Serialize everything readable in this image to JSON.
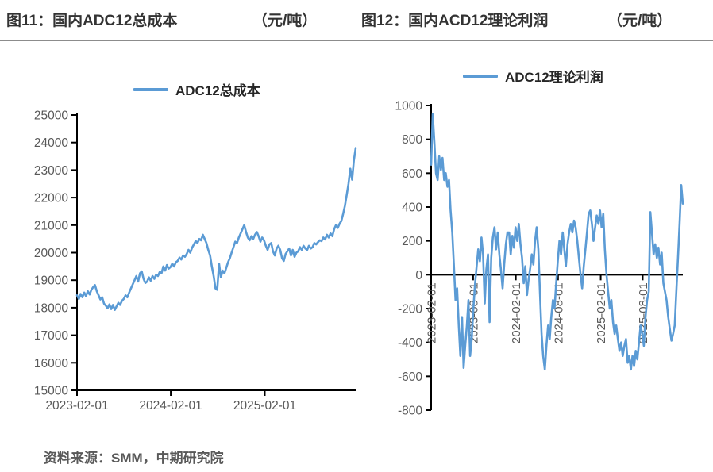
{
  "page": {
    "title_left": {
      "label": "图11：国内ADC12总成本",
      "unit": "（元/吨）"
    },
    "title_right": {
      "label": "图12：国内ACD12理论利润",
      "unit": "（元/吨）"
    },
    "footer": "资料来源：SMM，中期研究院"
  },
  "colors": {
    "line": "#5B9BD5",
    "axis": "#000000",
    "tick_label": "#595959",
    "title_text": "#333333",
    "divider": "#8C8C8C"
  },
  "chart_data": [
    {
      "type": "line",
      "name": "adc12-total-cost",
      "title": "图11：国内ADC12总成本（元/吨）",
      "legend": "ADC12总成本",
      "legend_position": "top",
      "grid": false,
      "line_color": "#5B9BD5",
      "ylim": [
        15000,
        25000
      ],
      "ytick_step": 1000,
      "yticks": [
        15000,
        16000,
        17000,
        18000,
        19000,
        20000,
        21000,
        22000,
        23000,
        24000,
        25000
      ],
      "xticks": [
        "2023-02-01",
        "2024-02-01",
        "2025-02-01"
      ],
      "xtick_rotation": 0,
      "x_axis_at_y": 15000,
      "series": [
        {
          "name": "ADC12总成本",
          "start": "2023-02-01",
          "step_days": 7,
          "values": [
            18450,
            18320,
            18500,
            18380,
            18550,
            18420,
            18600,
            18480,
            18650,
            18750,
            18820,
            18600,
            18450,
            18300,
            18380,
            18150,
            18080,
            17980,
            18120,
            17950,
            18100,
            17920,
            18050,
            18180,
            18100,
            18250,
            18320,
            18450,
            18380,
            18550,
            18700,
            18850,
            19000,
            19150,
            18950,
            19250,
            19320,
            19050,
            18900,
            18950,
            19100,
            18980,
            19150,
            19050,
            19200,
            19150,
            19300,
            19250,
            19500,
            19350,
            19550,
            19420,
            19480,
            19600,
            19500,
            19650,
            19700,
            19820,
            19750,
            19900,
            19850,
            19950,
            20100,
            20000,
            20180,
            20300,
            20420,
            20350,
            20500,
            20450,
            20650,
            20500,
            20350,
            20100,
            19900,
            19500,
            19150,
            18700,
            18650,
            19600,
            19100,
            19350,
            19250,
            19450,
            19650,
            19800,
            20000,
            20200,
            20400,
            20350,
            20550,
            20700,
            20850,
            21000,
            20750,
            20550,
            20450,
            20600,
            20500,
            20650,
            20750,
            20600,
            20400,
            20550,
            20450,
            20250,
            20100,
            20300,
            20350,
            20050,
            19900,
            20150,
            20250,
            20100,
            19800,
            19700,
            19950,
            20050,
            20150,
            19900,
            20100,
            19850,
            20000,
            20050,
            20200,
            20100,
            20250,
            20150,
            20100,
            20250,
            20150,
            20200,
            20350,
            20300,
            20380,
            20450,
            20420,
            20550,
            20480,
            20650,
            20550,
            20700,
            20600,
            20850,
            21000,
            20900,
            21050,
            21150,
            21400,
            21700,
            22100,
            22500,
            23050,
            22650,
            23350,
            23800
          ]
        }
      ]
    },
    {
      "type": "line",
      "name": "adc12-theoretical-profit",
      "title": "图12：国内ACD12理论利润（元/吨）",
      "legend": "ADC12理论利润",
      "legend_position": "top",
      "grid": false,
      "line_color": "#5B9BD5",
      "ylim": [
        -800,
        1000
      ],
      "ytick_step": 200,
      "yticks": [
        -800,
        -600,
        -400,
        -200,
        0,
        200,
        400,
        600,
        800,
        1000
      ],
      "xticks": [
        "2023-02-01",
        "2023-08-01",
        "2024-02-01",
        "2024-08-01",
        "2025-02-01",
        "2025-08-01"
      ],
      "xtick_rotation": -90,
      "x_axis_at_y": 0,
      "series": [
        {
          "name": "ADC12理论利润",
          "start": "2023-02-01",
          "step_days": 7,
          "values": [
            650,
            950,
            780,
            600,
            560,
            700,
            620,
            690,
            560,
            600,
            520,
            560,
            380,
            250,
            60,
            -150,
            -80,
            -300,
            -480,
            -250,
            -550,
            -420,
            -300,
            -150,
            -480,
            -380,
            -200,
            -60,
            50,
            150,
            80,
            220,
            120,
            -170,
            30,
            120,
            -280,
            100,
            220,
            280,
            150,
            250,
            120,
            30,
            -80,
            60,
            180,
            250,
            250,
            120,
            230,
            160,
            280,
            200,
            300,
            180,
            100,
            -50,
            50,
            -120,
            -30,
            40,
            120,
            60,
            200,
            280,
            150,
            -100,
            -350,
            -480,
            -560,
            -420,
            -300,
            -380,
            -250,
            -150,
            -200,
            -50,
            80,
            200,
            120,
            250,
            150,
            50,
            180,
            250,
            300,
            250,
            320,
            280,
            200,
            100,
            0,
            -80,
            50,
            150,
            250,
            360,
            380,
            300,
            200,
            280,
            350,
            300,
            380,
            280,
            360,
            150,
            0,
            -100,
            -200,
            -150,
            -280,
            -350,
            -300,
            -380,
            -450,
            -400,
            -480,
            -420,
            -380,
            -520,
            -480,
            -560,
            -480,
            -540,
            -450,
            -500,
            -400,
            -300,
            -350,
            -420,
            -250,
            -150,
            -100,
            370,
            250,
            120,
            180,
            100,
            160,
            60,
            130,
            -50,
            -100,
            -150,
            -250,
            -320,
            -390,
            -350,
            -300,
            -100,
            100,
            300,
            530,
            420
          ]
        }
      ]
    }
  ]
}
